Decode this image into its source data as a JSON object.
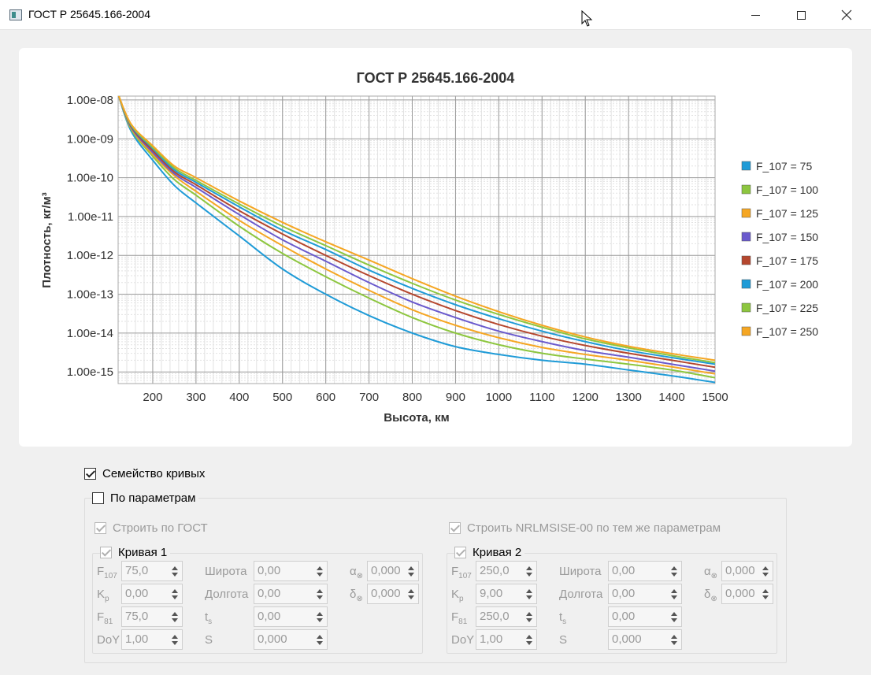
{
  "window": {
    "title": "ГОСТ Р 25645.166-2004"
  },
  "chart_data": {
    "type": "line",
    "title": "ГОСТ Р 25645.166-2004",
    "xlabel": "Высота, км",
    "ylabel": "Плотность, кг/м³",
    "xlim": [
      120,
      1500
    ],
    "ylim_log10": [
      -15.3,
      -7.9
    ],
    "y_scale": "log",
    "x_ticks": [
      "200",
      "300",
      "400",
      "500",
      "600",
      "700",
      "800",
      "900",
      "1000",
      "1100",
      "1200",
      "1300",
      "1400",
      "1500"
    ],
    "y_ticks": [
      "1.00e-08",
      "1.00e-09",
      "1.00e-10",
      "1.00e-11",
      "1.00e-12",
      "1.00e-13",
      "1.00e-14",
      "1.00e-15"
    ],
    "grid": true,
    "legend_position": "right",
    "x": [
      120,
      150,
      200,
      250,
      300,
      400,
      500,
      600,
      700,
      800,
      900,
      1000,
      1100,
      1200,
      1300,
      1400,
      1500
    ],
    "series": [
      {
        "name": "F_107 = 75",
        "color": "#1f9bd7",
        "log10_density": [
          -7.85,
          -8.8,
          -9.55,
          -10.2,
          -10.65,
          -11.5,
          -12.35,
          -13.0,
          -13.55,
          -14.0,
          -14.35,
          -14.55,
          -14.7,
          -14.8,
          -14.95,
          -15.1,
          -15.27
        ]
      },
      {
        "name": "F_107 = 100",
        "color": "#8dc63f",
        "log10_density": [
          -7.85,
          -8.75,
          -9.45,
          -10.05,
          -10.45,
          -11.25,
          -11.95,
          -12.55,
          -13.1,
          -13.6,
          -14.0,
          -14.3,
          -14.52,
          -14.67,
          -14.8,
          -14.95,
          -15.15
        ]
      },
      {
        "name": "F_107 = 125",
        "color": "#f5a623",
        "log10_density": [
          -7.85,
          -8.72,
          -9.4,
          -9.95,
          -10.35,
          -11.1,
          -11.75,
          -12.35,
          -12.9,
          -13.4,
          -13.8,
          -14.12,
          -14.37,
          -14.55,
          -14.7,
          -14.87,
          -15.05
        ]
      },
      {
        "name": "F_107 = 150",
        "color": "#6a5acd",
        "log10_density": [
          -7.85,
          -8.7,
          -9.35,
          -9.9,
          -10.25,
          -10.95,
          -11.6,
          -12.15,
          -12.7,
          -13.2,
          -13.6,
          -13.95,
          -14.22,
          -14.45,
          -14.62,
          -14.8,
          -14.98
        ]
      },
      {
        "name": "F_107 = 175",
        "color": "#b5472e",
        "log10_density": [
          -7.85,
          -8.68,
          -9.3,
          -9.85,
          -10.18,
          -10.85,
          -11.45,
          -12.0,
          -12.52,
          -13.0,
          -13.42,
          -13.78,
          -14.08,
          -14.32,
          -14.52,
          -14.7,
          -14.88
        ]
      },
      {
        "name": "F_107 = 200",
        "color": "#1f9bd7",
        "log10_density": [
          -7.85,
          -8.66,
          -9.25,
          -9.8,
          -10.12,
          -10.75,
          -11.35,
          -11.85,
          -12.38,
          -12.85,
          -13.27,
          -13.63,
          -13.95,
          -14.22,
          -14.45,
          -14.63,
          -14.8
        ]
      },
      {
        "name": "F_107 = 225",
        "color": "#8dc63f",
        "log10_density": [
          -7.85,
          -8.64,
          -9.22,
          -9.75,
          -10.07,
          -10.68,
          -11.25,
          -11.75,
          -12.25,
          -12.72,
          -13.15,
          -13.52,
          -13.85,
          -14.15,
          -14.38,
          -14.58,
          -14.76
        ]
      },
      {
        "name": "F_107 = 250",
        "color": "#f5a623",
        "log10_density": [
          -7.85,
          -8.62,
          -9.18,
          -9.7,
          -10.0,
          -10.6,
          -11.15,
          -11.65,
          -12.12,
          -12.6,
          -13.05,
          -13.45,
          -13.8,
          -14.1,
          -14.34,
          -14.53,
          -14.7
        ]
      }
    ]
  },
  "controls": {
    "family": {
      "label": "Семейство кривых",
      "checked": true
    },
    "by_params": {
      "label": "По параметрам",
      "checked": false
    },
    "build_gost": {
      "label": "Строить по ГОСТ",
      "checked": true
    },
    "build_nrl": {
      "label": "Строить NRLMSISE-00 по тем же параметрам",
      "checked": true
    },
    "curve1": {
      "label": "Кривая 1",
      "f107_label": "F",
      "f107_sub": "107",
      "f107": "75,0",
      "kp_label": "K",
      "kp_sub": "p",
      "kp": "0,00",
      "f81_label": "F",
      "f81_sub": "81",
      "f81": "75,0",
      "doy_label": "DoY",
      "doy": "1,00",
      "lat_label": "Широта",
      "lat": "0,00",
      "lon_label": "Долгота",
      "lon": "0,00",
      "ts_label": "t",
      "ts_sub": "s",
      "ts": "0,00",
      "s_label": "S",
      "s": "0,000",
      "alpha_label": "α",
      "alpha_sub": "⊗",
      "alpha": "0,000",
      "delta_label": "δ",
      "delta_sub": "⊗",
      "delta": "0,000"
    },
    "curve2": {
      "label": "Кривая 2",
      "f107_label": "F",
      "f107_sub": "107",
      "f107": "250,0",
      "kp_label": "K",
      "kp_sub": "p",
      "kp": "9,00",
      "f81_label": "F",
      "f81_sub": "81",
      "f81": "250,0",
      "doy_label": "DoY",
      "doy": "1,00",
      "lat_label": "Широта",
      "lat": "0,00",
      "lon_label": "Долгота",
      "lon": "0,00",
      "ts_label": "t",
      "ts_sub": "s",
      "ts": "0,00",
      "s_label": "S",
      "s": "0,000",
      "alpha_label": "α",
      "alpha_sub": "⊗",
      "alpha": "0,000",
      "delta_label": "δ",
      "delta_sub": "⊗",
      "delta": "0,000"
    }
  }
}
